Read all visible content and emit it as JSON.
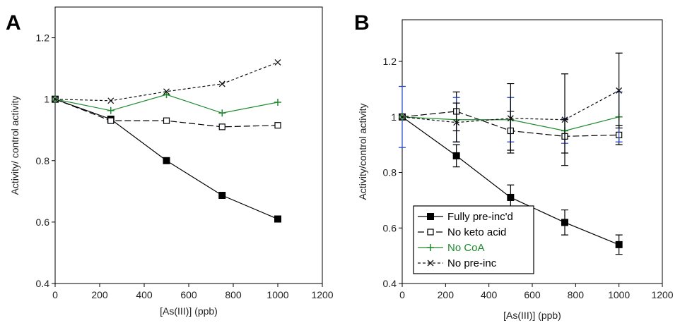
{
  "colors": {
    "black": "#000000",
    "green": "#1e8a2e",
    "blue": "#1f3fc8",
    "dashed": "#111111"
  },
  "chart_data": [
    {
      "panel_label": "A",
      "type": "line",
      "xlabel": "[As(III)] (ppb)",
      "ylabel": "Activity/ control activity",
      "xlim": [
        0,
        1200
      ],
      "ylim": [
        0.4,
        1.3
      ],
      "xticks": [
        0,
        200,
        400,
        600,
        800,
        1000,
        1200
      ],
      "yticks": [
        0.4,
        0.6,
        0.8,
        1,
        1.2
      ],
      "ytick_labels": [
        "0.4",
        "0.6",
        "0.8",
        "1",
        "1.2"
      ],
      "legend": false,
      "grid": false,
      "series": [
        {
          "key": "fully",
          "x": [
            0,
            250,
            500,
            750,
            1000
          ],
          "values": [
            1.0,
            0.935,
            0.8,
            0.687,
            0.61
          ],
          "marker": "filled-square",
          "line": "solid",
          "color": "#000000"
        },
        {
          "key": "noketo",
          "x": [
            0,
            250,
            500,
            750,
            1000
          ],
          "values": [
            1.0,
            0.93,
            0.93,
            0.91,
            0.915
          ],
          "marker": "open-square",
          "line": "longdash",
          "color": "#000000"
        },
        {
          "key": "nocoa",
          "x": [
            0,
            250,
            500,
            750,
            1000
          ],
          "values": [
            1.0,
            0.963,
            1.015,
            0.955,
            0.99
          ],
          "marker": "plus",
          "line": "solid",
          "color": "#1e8a2e"
        },
        {
          "key": "nopreinc",
          "x": [
            0,
            250,
            500,
            750,
            1000
          ],
          "values": [
            1.0,
            0.995,
            1.025,
            1.05,
            1.12
          ],
          "marker": "x",
          "line": "shortdash",
          "color": "#111111"
        }
      ]
    },
    {
      "panel_label": "B",
      "type": "line",
      "xlabel": "[As(III)] (ppb)",
      "ylabel": "Activity/control activity",
      "xlim": [
        0,
        1200
      ],
      "ylim": [
        0.4,
        1.35
      ],
      "xticks": [
        0,
        200,
        400,
        600,
        800,
        1000,
        1200
      ],
      "yticks": [
        0.4,
        0.6,
        0.8,
        1,
        1.2
      ],
      "ytick_labels": [
        "0.4",
        "0.6",
        "0.8",
        "1",
        "1.2"
      ],
      "legend": true,
      "legend_position": "bottom-left",
      "grid": false,
      "series": [
        {
          "key": "fully",
          "name": "Fully pre-inc'd",
          "x": [
            0,
            250,
            500,
            750,
            1000
          ],
          "values": [
            1.0,
            0.86,
            0.71,
            0.62,
            0.54
          ],
          "err": [
            0,
            0.04,
            0.045,
            0.045,
            0.035
          ],
          "marker": "filled-square",
          "line": "solid",
          "color": "#000000",
          "err_color": "#000000"
        },
        {
          "key": "noketo",
          "name": "No keto acid",
          "x": [
            0,
            250,
            500,
            750,
            1000
          ],
          "values": [
            1.0,
            1.02,
            0.95,
            0.93,
            0.935
          ],
          "err": [
            0,
            0.07,
            0.07,
            0.06,
            0.035
          ],
          "marker": "open-square",
          "line": "longdash",
          "color": "#000000",
          "err_color": "#000000"
        },
        {
          "key": "nocoa",
          "name": "No CoA",
          "x": [
            0,
            250,
            500,
            750,
            1000
          ],
          "values": [
            1.0,
            0.99,
            0.99,
            0.95,
            1.0
          ],
          "err": [
            0.11,
            0.08,
            0.08,
            0.045,
            0.09
          ],
          "marker": "plus",
          "line": "solid",
          "color": "#1e8a2e",
          "err_color": "#1f3fc8"
        },
        {
          "key": "nopreinc",
          "name": "No pre-inc",
          "x": [
            0,
            250,
            500,
            750,
            1000
          ],
          "values": [
            1.0,
            0.98,
            0.995,
            0.99,
            1.095
          ],
          "err": [
            0,
            0.07,
            0.125,
            0.165,
            0.135
          ],
          "marker": "x",
          "line": "shortdash",
          "color": "#111111",
          "err_color": "#000000"
        }
      ]
    }
  ]
}
